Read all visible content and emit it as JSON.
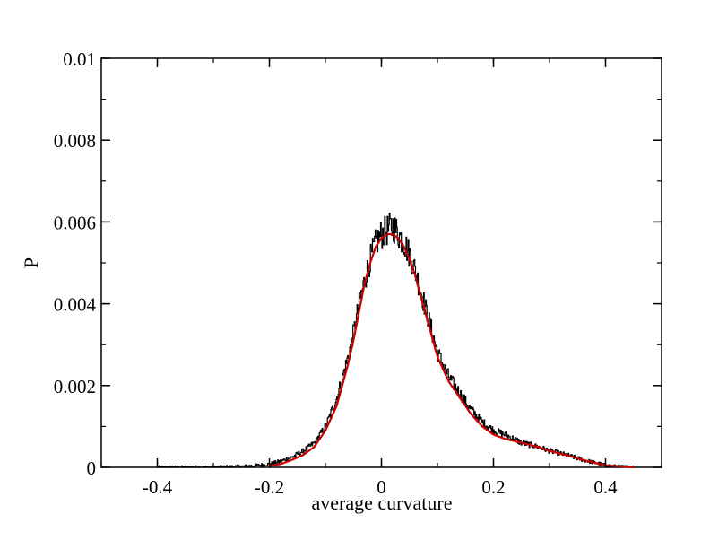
{
  "chart_data": {
    "type": "line",
    "title": "",
    "xlabel": "average curvature",
    "ylabel": "P",
    "xlim": [
      -0.5,
      0.5
    ],
    "ylim": [
      0,
      0.01
    ],
    "grid": false,
    "legend": "none",
    "x_ticks": [
      -0.4,
      -0.2,
      0,
      0.2,
      0.4
    ],
    "x_tick_labels": [
      "-0.4",
      "-0.2",
      "0",
      "0.2",
      "0.4"
    ],
    "y_ticks": [
      0,
      0.002,
      0.004,
      0.006,
      0.008,
      0.01
    ],
    "y_tick_labels": [
      "0",
      "0.002",
      "0.004",
      "0.006",
      "0.008",
      "0.01"
    ],
    "series": [
      {
        "kind": "histogram",
        "color": "#000000",
        "x": [
          -0.4,
          -0.35,
          -0.3,
          -0.25,
          -0.22,
          -0.2,
          -0.18,
          -0.16,
          -0.14,
          -0.12,
          -0.1,
          -0.08,
          -0.06,
          -0.05,
          -0.04,
          -0.03,
          -0.02,
          -0.01,
          0.0,
          0.01,
          0.02,
          0.03,
          0.04,
          0.05,
          0.06,
          0.07,
          0.08,
          0.09,
          0.1,
          0.12,
          0.14,
          0.16,
          0.18,
          0.2,
          0.22,
          0.25,
          0.28,
          0.3,
          0.33,
          0.36,
          0.4,
          0.42,
          0.45
        ],
        "y": [
          0.0,
          0.0,
          0.0,
          2e-05,
          5e-05,
          8e-05,
          0.00015,
          0.00025,
          0.0004,
          0.0006,
          0.001,
          0.0017,
          0.0027,
          0.0033,
          0.004,
          0.0046,
          0.0051,
          0.0055,
          0.0057,
          0.0058,
          0.0059,
          0.0057,
          0.0055,
          0.0052,
          0.0048,
          0.0043,
          0.0038,
          0.0033,
          0.0028,
          0.0022,
          0.0018,
          0.0014,
          0.0011,
          0.0009,
          0.0008,
          0.0006,
          0.0005,
          0.0004,
          0.0003,
          0.00018,
          5e-05,
          2e-05,
          0.0
        ]
      },
      {
        "kind": "fit",
        "color": "#cc0000",
        "x": [
          -0.2,
          -0.18,
          -0.16,
          -0.14,
          -0.12,
          -0.1,
          -0.08,
          -0.06,
          -0.05,
          -0.04,
          -0.03,
          -0.02,
          -0.01,
          0.0,
          0.01,
          0.02,
          0.03,
          0.04,
          0.05,
          0.06,
          0.07,
          0.08,
          0.09,
          0.1,
          0.12,
          0.14,
          0.16,
          0.18,
          0.2,
          0.22,
          0.25,
          0.28,
          0.3,
          0.33,
          0.36,
          0.4,
          0.45
        ],
        "y": [
          3e-05,
          8e-05,
          0.00018,
          0.0003,
          0.0005,
          0.0009,
          0.0015,
          0.0025,
          0.0031,
          0.0038,
          0.0045,
          0.005,
          0.0054,
          0.0056,
          0.0057,
          0.0057,
          0.0056,
          0.0054,
          0.0051,
          0.0047,
          0.0042,
          0.0037,
          0.0032,
          0.0027,
          0.0021,
          0.0017,
          0.0013,
          0.001,
          0.0008,
          0.0007,
          0.0006,
          0.0005,
          0.0004,
          0.0003,
          0.00018,
          5e-05,
          0.0
        ]
      }
    ]
  }
}
